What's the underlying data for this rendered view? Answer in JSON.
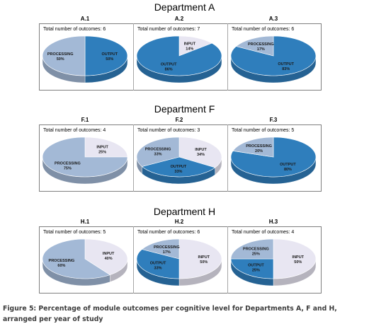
{
  "colors": {
    "OUTPUT": "#2f7ebc",
    "PROCESSING": "#a3b9d6",
    "INPUT": "#e8e6f2"
  },
  "caption": "Figure 5: Percentage of module outcomes per cognitive level for Departments A, F and H, arranged per year of study",
  "departments": [
    {
      "title": "Department A"
    },
    {
      "title": "Department F"
    },
    {
      "title": "Department H"
    }
  ],
  "chart_data": [
    {
      "type": "pie",
      "department": 0,
      "column": 0,
      "title": "A.1",
      "total": "Total number of outcomes: 6",
      "slices": [
        {
          "label": "OUTPUT",
          "value": 50,
          "display": "50%"
        },
        {
          "label": "PROCESSING",
          "value": 50,
          "display": "50%"
        }
      ]
    },
    {
      "type": "pie",
      "department": 0,
      "column": 1,
      "title": "A.2",
      "total": "Total number of outcomes: 7",
      "slices": [
        {
          "label": "INPUT",
          "value": 14,
          "display": "14%"
        },
        {
          "label": "OUTPUT",
          "value": 86,
          "display": "86%"
        }
      ]
    },
    {
      "type": "pie",
      "department": 0,
      "column": 2,
      "title": "A.3",
      "total": "Total number of outcomes: 6",
      "slices": [
        {
          "label": "OUTPUT",
          "value": 83,
          "display": "83%"
        },
        {
          "label": "PROCESSING",
          "value": 17,
          "display": "17%"
        }
      ]
    },
    {
      "type": "pie",
      "department": 1,
      "column": 0,
      "title": "F.1",
      "total": "Total number of outcomes: 4",
      "slices": [
        {
          "label": "INPUT",
          "value": 25,
          "display": "25%"
        },
        {
          "label": "PROCESSING",
          "value": 75,
          "display": "75%"
        }
      ]
    },
    {
      "type": "pie",
      "department": 1,
      "column": 1,
      "title": "F.2",
      "total": "Total number of outcomes: 3",
      "slices": [
        {
          "label": "INPUT",
          "value": 34,
          "display": "34%"
        },
        {
          "label": "OUTPUT",
          "value": 33,
          "display": "33%"
        },
        {
          "label": "PROCESSING",
          "value": 33,
          "display": "33%"
        }
      ]
    },
    {
      "type": "pie",
      "department": 1,
      "column": 2,
      "title": "F.3",
      "total": "Total number of outcomes: 5",
      "slices": [
        {
          "label": "OUTPUT",
          "value": 80,
          "display": "80%"
        },
        {
          "label": "PROCESSING",
          "value": 20,
          "display": "20%"
        }
      ]
    },
    {
      "type": "pie",
      "department": 2,
      "column": 0,
      "title": "H.1",
      "total": "Total number of outcomes: 5",
      "slices": [
        {
          "label": "INPUT",
          "value": 40,
          "display": "40%"
        },
        {
          "label": "PROCESSING",
          "value": 60,
          "display": "60%"
        }
      ]
    },
    {
      "type": "pie",
      "department": 2,
      "column": 1,
      "title": "H.2",
      "total": "Total number of outcomes: 6",
      "slices": [
        {
          "label": "INPUT",
          "value": 50,
          "display": "50%"
        },
        {
          "label": "OUTPUT",
          "value": 33,
          "display": "33%"
        },
        {
          "label": "PROCESSING",
          "value": 17,
          "display": "17%"
        }
      ]
    },
    {
      "type": "pie",
      "department": 2,
      "column": 2,
      "title": "H.3",
      "total": "Total number of outcomes: 4",
      "slices": [
        {
          "label": "INPUT",
          "value": 50,
          "display": "50%"
        },
        {
          "label": "OUTPUT",
          "value": 25,
          "display": "25%"
        },
        {
          "label": "PROCESSING",
          "value": 25,
          "display": "25%"
        }
      ]
    }
  ]
}
